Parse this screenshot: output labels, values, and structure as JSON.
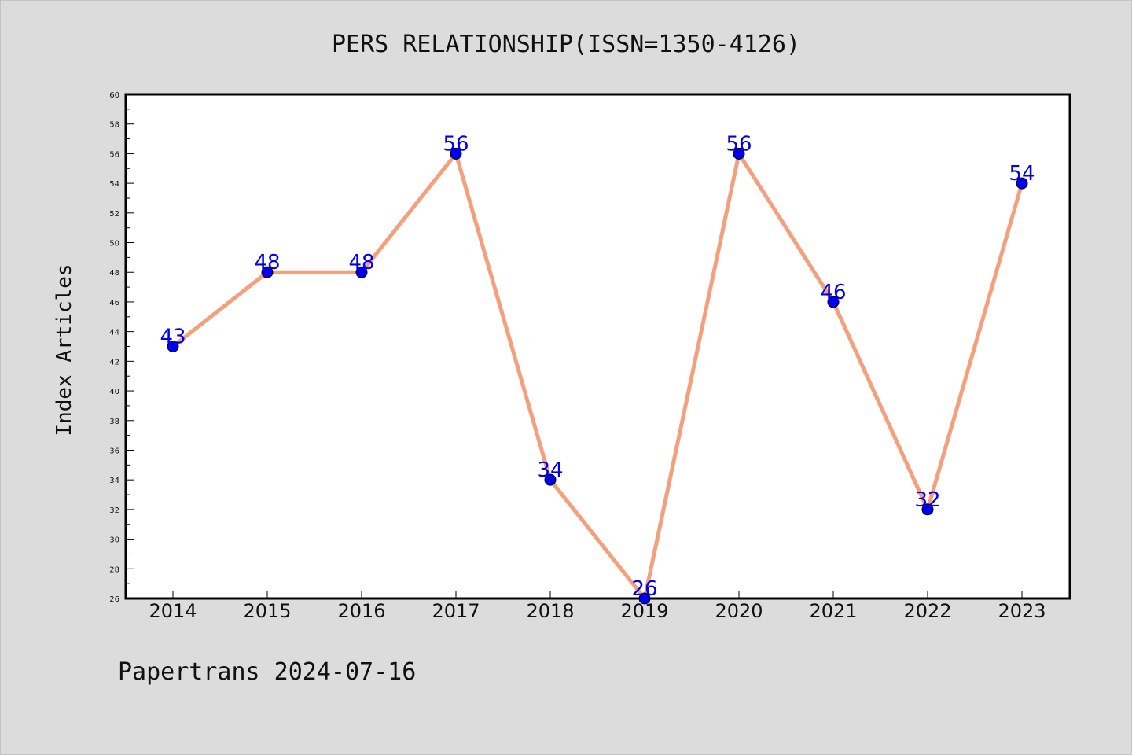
{
  "chart_data": {
    "type": "line",
    "title": "PERS RELATIONSHIP(ISSN=1350-4126)",
    "xlabel": "",
    "ylabel": "Index Articles",
    "categories": [
      "2014",
      "2015",
      "2016",
      "2017",
      "2018",
      "2019",
      "2020",
      "2021",
      "2022",
      "2023"
    ],
    "values": [
      43,
      48,
      48,
      56,
      34,
      26,
      56,
      46,
      32,
      54
    ],
    "ylim": [
      26,
      60
    ],
    "yticks": [
      26,
      28,
      30,
      32,
      34,
      36,
      38,
      40,
      42,
      44,
      46,
      48,
      50,
      52,
      54,
      56,
      58,
      60
    ],
    "grid": false,
    "line_color": "#f4a07c",
    "marker_color": "#0000ee",
    "label_color": "#0000ee"
  },
  "footer": "Papertrans 2024-07-16"
}
